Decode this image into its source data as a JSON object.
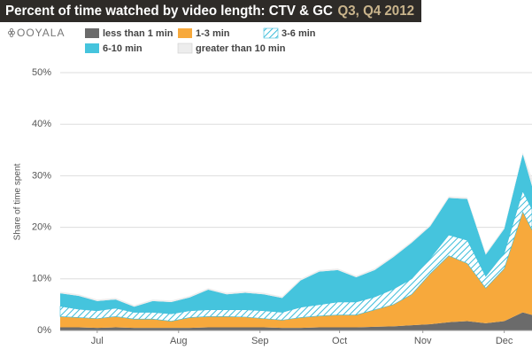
{
  "logo": "OOYALA",
  "chart_data": {
    "type": "stacked-area",
    "title": "Percent of time watched by video length: CTV & GC",
    "subtitle": "Q3, Q4 2012",
    "y_label": "Share of time spent",
    "x": [
      0,
      1,
      2,
      3,
      4,
      5,
      6,
      7,
      8,
      9,
      10,
      11,
      12,
      13,
      14,
      15,
      16,
      17,
      18,
      19,
      20,
      21,
      22,
      23,
      24,
      25,
      25.5
    ],
    "xlim": [
      0,
      25.5
    ],
    "xticks": [
      {
        "value": 2.0,
        "label": "Jul"
      },
      {
        "value": 6.4,
        "label": "Aug"
      },
      {
        "value": 10.8,
        "label": "Sep"
      },
      {
        "value": 15.1,
        "label": "Oct"
      },
      {
        "value": 19.6,
        "label": "Nov"
      },
      {
        "value": 24.0,
        "label": "Dec"
      }
    ],
    "ylim": [
      0,
      50
    ],
    "yticks": [
      {
        "value": 0,
        "label": "0%"
      },
      {
        "value": 10,
        "label": "10%"
      },
      {
        "value": 20,
        "label": "20%"
      },
      {
        "value": 30,
        "label": "30%"
      },
      {
        "value": 40,
        "label": "40%"
      },
      {
        "value": 50,
        "label": "50%"
      }
    ],
    "grid": true,
    "series": [
      {
        "name": "less than 1 min",
        "color": "#6b6b6b",
        "values": [
          0.6,
          0.6,
          0.5,
          0.6,
          0.5,
          0.5,
          0.5,
          0.5,
          0.6,
          0.6,
          0.6,
          0.6,
          0.5,
          0.5,
          0.6,
          0.6,
          0.6,
          0.7,
          0.8,
          1,
          1.2,
          1.6,
          1.8,
          1.4,
          1.8,
          3.5,
          3
        ]
      },
      {
        "name": "1-3 min",
        "color": "#f7a93c",
        "values": [
          2.1,
          1.9,
          1.8,
          2.1,
          1.7,
          1.7,
          1.3,
          2.0,
          2.1,
          2.1,
          2.0,
          1.7,
          1.5,
          2.0,
          2.2,
          2.4,
          2.4,
          3.3,
          4.2,
          6.0,
          9.8,
          12.9,
          11.2,
          6.8,
          10.2,
          19.5,
          16.5
        ]
      },
      {
        "name": "3-6 min",
        "color": "#3bbcd9",
        "hatch": true,
        "values": [
          2.0,
          1.6,
          1.5,
          1.6,
          1.3,
          1.3,
          1.4,
          1.3,
          1.3,
          1.3,
          1.4,
          1.5,
          1.5,
          2.0,
          2.2,
          2.5,
          2.5,
          2.5,
          3.0,
          3.0,
          3.0,
          4.0,
          4.5,
          2.3,
          3.0,
          4.0,
          4.0
        ]
      },
      {
        "name": "6-10 min",
        "color": "#45c4dd",
        "values": [
          2.5,
          2.6,
          1.9,
          1.7,
          1.1,
          2.2,
          2.3,
          2.6,
          3.9,
          3.0,
          3.3,
          3.2,
          2.8,
          5.2,
          6.4,
          6.2,
          4.8,
          5.2,
          6.2,
          7.0,
          6.2,
          7.2,
          8.0,
          4.2,
          4.7,
          7.2,
          4.5
        ]
      },
      {
        "name": "greater than 10 min",
        "color": "#ededed",
        "values": [
          0.3,
          0.3,
          0.3,
          0.3,
          0.3,
          0.3,
          0.3,
          0.3,
          0.3,
          0.3,
          0.3,
          0.3,
          0.3,
          0.3,
          0.3,
          0.3,
          0.3,
          0.3,
          0.3,
          0.3,
          0.3,
          0.3,
          0.3,
          0.3,
          0.3,
          0.3,
          1.5
        ]
      }
    ]
  }
}
